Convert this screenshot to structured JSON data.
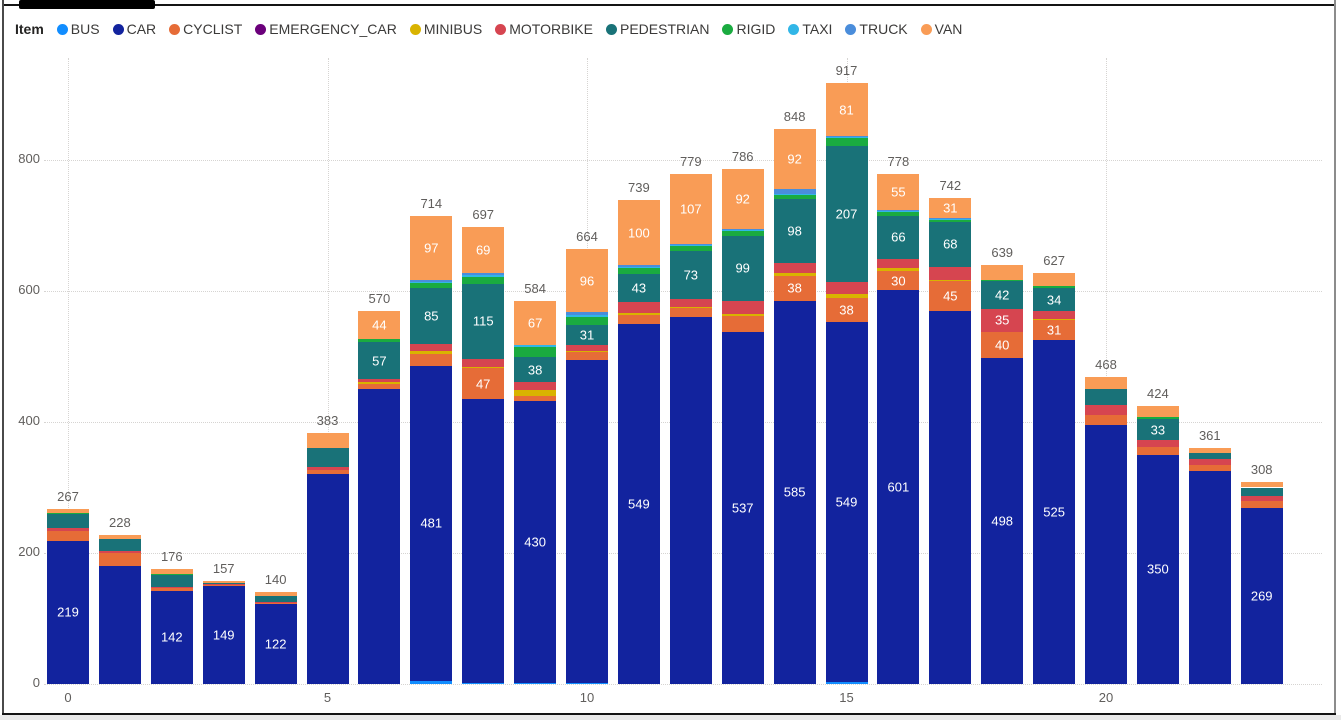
{
  "legend": {
    "title": "Item",
    "items": [
      {
        "label": "BUS",
        "color": "#118DFF"
      },
      {
        "label": "CAR",
        "color": "#12239E"
      },
      {
        "label": "CYCLIST",
        "color": "#E66C37"
      },
      {
        "label": "EMERGENCY_CAR",
        "color": "#6B007B"
      },
      {
        "label": "MINIBUS",
        "color": "#D9B300"
      },
      {
        "label": "MOTORBIKE",
        "color": "#D64550"
      },
      {
        "label": "PEDESTRIAN",
        "color": "#197278"
      },
      {
        "label": "RIGID",
        "color": "#1AAB40"
      },
      {
        "label": "TAXI",
        "color": "#31B6E7"
      },
      {
        "label": "TRUCK",
        "color": "#4A8DDB"
      },
      {
        "label": "VAN",
        "color": "#F99C56"
      }
    ]
  },
  "chart_data": {
    "type": "bar",
    "stacked": true,
    "title": "",
    "xlabel": "",
    "ylabel": "",
    "legend_position": "top-left",
    "grid": "dotted",
    "ylim": [
      0,
      950
    ],
    "y_ticks": [
      {
        "label": "0",
        "value": 0
      },
      {
        "label": "200",
        "value": 200
      },
      {
        "label": "400",
        "value": 400
      },
      {
        "label": "600",
        "value": 600
      },
      {
        "label": "800",
        "value": 800
      }
    ],
    "series_order": [
      "BUS",
      "CAR",
      "CYCLIST",
      "EMERGENCY_CAR",
      "MINIBUS",
      "MOTORBIKE",
      "PEDESTRIAN",
      "RIGID",
      "TAXI",
      "TRUCK",
      "VAN"
    ],
    "bars": [
      {
        "x": 0,
        "x_label": "0",
        "total": 267,
        "segments": [
          {
            "item": "CAR",
            "value": 219,
            "show_label": true
          },
          {
            "item": "CYCLIST",
            "value": 15
          },
          {
            "item": "MOTORBIKE",
            "value": 4
          },
          {
            "item": "PEDESTRIAN",
            "value": 22
          },
          {
            "item": "RIGID",
            "value": 1
          },
          {
            "item": "VAN",
            "value": 6
          }
        ]
      },
      {
        "x": 1,
        "total": 228,
        "segments": [
          {
            "item": "CAR",
            "value": 180
          },
          {
            "item": "CYCLIST",
            "value": 20
          },
          {
            "item": "MOTORBIKE",
            "value": 3
          },
          {
            "item": "PEDESTRIAN",
            "value": 19
          },
          {
            "item": "VAN",
            "value": 6
          }
        ]
      },
      {
        "x": 2,
        "total": 176,
        "segments": [
          {
            "item": "CAR",
            "value": 142,
            "show_label": true
          },
          {
            "item": "CYCLIST",
            "value": 4
          },
          {
            "item": "MOTORBIKE",
            "value": 2
          },
          {
            "item": "PEDESTRIAN",
            "value": 18
          },
          {
            "item": "RIGID",
            "value": 2
          },
          {
            "item": "VAN",
            "value": 8
          }
        ]
      },
      {
        "x": 3,
        "total": 157,
        "segments": [
          {
            "item": "CAR",
            "value": 149,
            "show_label": true
          },
          {
            "item": "CYCLIST",
            "value": 2
          },
          {
            "item": "MOTORBIKE",
            "value": 1
          },
          {
            "item": "PEDESTRIAN",
            "value": 2
          },
          {
            "item": "VAN",
            "value": 3
          }
        ]
      },
      {
        "x": 4,
        "total": 140,
        "segments": [
          {
            "item": "CAR",
            "value": 122,
            "show_label": true
          },
          {
            "item": "CYCLIST",
            "value": 1
          },
          {
            "item": "MOTORBIKE",
            "value": 2
          },
          {
            "item": "PEDESTRIAN",
            "value": 9
          },
          {
            "item": "VAN",
            "value": 6
          }
        ]
      },
      {
        "x": 5,
        "x_label": "5",
        "total": 383,
        "segments": [
          {
            "item": "CAR",
            "value": 320
          },
          {
            "item": "CYCLIST",
            "value": 6
          },
          {
            "item": "MOTORBIKE",
            "value": 5
          },
          {
            "item": "PEDESTRIAN",
            "value": 29
          },
          {
            "item": "VAN",
            "value": 23
          }
        ]
      },
      {
        "x": 6,
        "total": 570,
        "segments": [
          {
            "item": "CAR",
            "value": 450
          },
          {
            "item": "CYCLIST",
            "value": 8
          },
          {
            "item": "MINIBUS",
            "value": 3
          },
          {
            "item": "MOTORBIKE",
            "value": 4
          },
          {
            "item": "PEDESTRIAN",
            "value": 57,
            "show_label": true
          },
          {
            "item": "RIGID",
            "value": 4
          },
          {
            "item": "VAN",
            "value": 44,
            "show_label": true
          }
        ]
      },
      {
        "x": 7,
        "total": 714,
        "segments": [
          {
            "item": "BUS",
            "value": 5
          },
          {
            "item": "CAR",
            "value": 481,
            "show_label": true
          },
          {
            "item": "CYCLIST",
            "value": 18
          },
          {
            "item": "MINIBUS",
            "value": 5
          },
          {
            "item": "MOTORBIKE",
            "value": 10
          },
          {
            "item": "PEDESTRIAN",
            "value": 85,
            "show_label": true
          },
          {
            "item": "RIGID",
            "value": 8
          },
          {
            "item": "TAXI",
            "value": 2
          },
          {
            "item": "TRUCK",
            "value": 3
          },
          {
            "item": "VAN",
            "value": 97,
            "show_label": true
          }
        ]
      },
      {
        "x": 8,
        "total": 697,
        "segments": [
          {
            "item": "BUS",
            "value": 2
          },
          {
            "item": "CAR",
            "value": 433
          },
          {
            "item": "CYCLIST",
            "value": 47,
            "show_label": true
          },
          {
            "item": "MINIBUS",
            "value": 2
          },
          {
            "item": "MOTORBIKE",
            "value": 12
          },
          {
            "item": "PEDESTRIAN",
            "value": 115,
            "show_label": true
          },
          {
            "item": "RIGID",
            "value": 10
          },
          {
            "item": "TAXI",
            "value": 3
          },
          {
            "item": "TRUCK",
            "value": 4
          },
          {
            "item": "VAN",
            "value": 69,
            "show_label": true
          }
        ]
      },
      {
        "x": 9,
        "total": 584,
        "segments": [
          {
            "item": "BUS",
            "value": 2
          },
          {
            "item": "CAR",
            "value": 430,
            "show_label": true
          },
          {
            "item": "CYCLIST",
            "value": 8
          },
          {
            "item": "MINIBUS",
            "value": 9
          },
          {
            "item": "MOTORBIKE",
            "value": 12
          },
          {
            "item": "PEDESTRIAN",
            "value": 38,
            "show_label": true
          },
          {
            "item": "RIGID",
            "value": 15
          },
          {
            "item": "TAXI",
            "value": 3
          },
          {
            "item": "VAN",
            "value": 67,
            "show_label": true
          }
        ]
      },
      {
        "x": 10,
        "x_label": "10",
        "total": 664,
        "segments": [
          {
            "item": "BUS",
            "value": 2
          },
          {
            "item": "CAR",
            "value": 493
          },
          {
            "item": "CYCLIST",
            "value": 12
          },
          {
            "item": "MINIBUS",
            "value": 2
          },
          {
            "item": "MOTORBIKE",
            "value": 8
          },
          {
            "item": "PEDESTRIAN",
            "value": 31,
            "show_label": true
          },
          {
            "item": "RIGID",
            "value": 12
          },
          {
            "item": "TAXI",
            "value": 3
          },
          {
            "item": "TRUCK",
            "value": 5
          },
          {
            "item": "VAN",
            "value": 96,
            "show_label": true
          }
        ]
      },
      {
        "x": 11,
        "total": 739,
        "segments": [
          {
            "item": "CAR",
            "value": 549,
            "show_label": true
          },
          {
            "item": "CYCLIST",
            "value": 15
          },
          {
            "item": "MINIBUS",
            "value": 2
          },
          {
            "item": "MOTORBIKE",
            "value": 17
          },
          {
            "item": "PEDESTRIAN",
            "value": 43,
            "show_label": true
          },
          {
            "item": "RIGID",
            "value": 10
          },
          {
            "item": "TAXI",
            "value": 1
          },
          {
            "item": "TRUCK",
            "value": 2
          },
          {
            "item": "VAN",
            "value": 100,
            "show_label": true
          }
        ]
      },
      {
        "x": 12,
        "total": 779,
        "segments": [
          {
            "item": "CAR",
            "value": 560
          },
          {
            "item": "CYCLIST",
            "value": 14
          },
          {
            "item": "MINIBUS",
            "value": 2
          },
          {
            "item": "MOTORBIKE",
            "value": 12
          },
          {
            "item": "PEDESTRIAN",
            "value": 73,
            "show_label": true
          },
          {
            "item": "RIGID",
            "value": 8
          },
          {
            "item": "TAXI",
            "value": 1
          },
          {
            "item": "TRUCK",
            "value": 2
          },
          {
            "item": "VAN",
            "value": 107,
            "show_label": true
          }
        ]
      },
      {
        "x": 13,
        "total": 786,
        "segments": [
          {
            "item": "CAR",
            "value": 537,
            "show_label": true
          },
          {
            "item": "CYCLIST",
            "value": 25
          },
          {
            "item": "MINIBUS",
            "value": 3
          },
          {
            "item": "MOTORBIKE",
            "value": 20
          },
          {
            "item": "PEDESTRIAN",
            "value": 99,
            "show_label": true
          },
          {
            "item": "RIGID",
            "value": 8
          },
          {
            "item": "TAXI",
            "value": 1
          },
          {
            "item": "TRUCK",
            "value": 1
          },
          {
            "item": "VAN",
            "value": 92,
            "show_label": true
          }
        ]
      },
      {
        "x": 14,
        "total": 848,
        "segments": [
          {
            "item": "CAR",
            "value": 585,
            "show_label": true
          },
          {
            "item": "CYCLIST",
            "value": 38,
            "show_label": true
          },
          {
            "item": "MINIBUS",
            "value": 5
          },
          {
            "item": "MOTORBIKE",
            "value": 15
          },
          {
            "item": "PEDESTRIAN",
            "value": 98,
            "show_label": true
          },
          {
            "item": "RIGID",
            "value": 5
          },
          {
            "item": "TAXI",
            "value": 2
          },
          {
            "item": "TRUCK",
            "value": 8
          },
          {
            "item": "VAN",
            "value": 92,
            "show_label": true
          }
        ]
      },
      {
        "x": 15,
        "x_label": "15",
        "total": 917,
        "segments": [
          {
            "item": "BUS",
            "value": 3
          },
          {
            "item": "CAR",
            "value": 549,
            "show_label": true
          },
          {
            "item": "CYCLIST",
            "value": 38,
            "show_label": true
          },
          {
            "item": "MINIBUS",
            "value": 5
          },
          {
            "item": "MOTORBIKE",
            "value": 19
          },
          {
            "item": "PEDESTRIAN",
            "value": 207,
            "show_label": true
          },
          {
            "item": "RIGID",
            "value": 13
          },
          {
            "item": "TAXI",
            "value": 1
          },
          {
            "item": "TRUCK",
            "value": 1
          },
          {
            "item": "VAN",
            "value": 81,
            "show_label": true
          }
        ]
      },
      {
        "x": 16,
        "total": 778,
        "segments": [
          {
            "item": "CAR",
            "value": 601,
            "show_label": true
          },
          {
            "item": "CYCLIST",
            "value": 30,
            "show_label": true
          },
          {
            "item": "MINIBUS",
            "value": 4
          },
          {
            "item": "MOTORBIKE",
            "value": 14
          },
          {
            "item": "PEDESTRIAN",
            "value": 66,
            "show_label": true
          },
          {
            "item": "RIGID",
            "value": 6
          },
          {
            "item": "TAXI",
            "value": 1
          },
          {
            "item": "TRUCK",
            "value": 1
          },
          {
            "item": "VAN",
            "value": 55,
            "show_label": true
          }
        ]
      },
      {
        "x": 17,
        "total": 742,
        "segments": [
          {
            "item": "CAR",
            "value": 570
          },
          {
            "item": "CYCLIST",
            "value": 45,
            "show_label": true
          },
          {
            "item": "MINIBUS",
            "value": 2
          },
          {
            "item": "MOTORBIKE",
            "value": 20
          },
          {
            "item": "PEDESTRIAN",
            "value": 68,
            "show_label": true
          },
          {
            "item": "RIGID",
            "value": 4
          },
          {
            "item": "TAXI",
            "value": 1
          },
          {
            "item": "TRUCK",
            "value": 1
          },
          {
            "item": "VAN",
            "value": 31,
            "show_label": true
          }
        ]
      },
      {
        "x": 18,
        "total": 639,
        "segments": [
          {
            "item": "CAR",
            "value": 498,
            "show_label": true
          },
          {
            "item": "CYCLIST",
            "value": 40,
            "show_label": true
          },
          {
            "item": "MOTORBIKE",
            "value": 35,
            "show_label": true
          },
          {
            "item": "PEDESTRIAN",
            "value": 42,
            "show_label": true
          },
          {
            "item": "RIGID",
            "value": 2
          },
          {
            "item": "VAN",
            "value": 22
          }
        ]
      },
      {
        "x": 19,
        "total": 627,
        "segments": [
          {
            "item": "CAR",
            "value": 525,
            "show_label": true
          },
          {
            "item": "CYCLIST",
            "value": 31,
            "show_label": true
          },
          {
            "item": "MINIBUS",
            "value": 2
          },
          {
            "item": "MOTORBIKE",
            "value": 12
          },
          {
            "item": "PEDESTRIAN",
            "value": 34,
            "show_label": true
          },
          {
            "item": "RIGID",
            "value": 3
          },
          {
            "item": "VAN",
            "value": 20
          }
        ]
      },
      {
        "x": 20,
        "x_label": "20",
        "total": 468,
        "segments": [
          {
            "item": "CAR",
            "value": 395
          },
          {
            "item": "CYCLIST",
            "value": 16
          },
          {
            "item": "MOTORBIKE",
            "value": 15
          },
          {
            "item": "PEDESTRIAN",
            "value": 25
          },
          {
            "item": "VAN",
            "value": 17
          }
        ]
      },
      {
        "x": 21,
        "total": 424,
        "segments": [
          {
            "item": "CAR",
            "value": 350,
            "show_label": true
          },
          {
            "item": "CYCLIST",
            "value": 12
          },
          {
            "item": "MOTORBIKE",
            "value": 10
          },
          {
            "item": "PEDESTRIAN",
            "value": 33,
            "show_label": true
          },
          {
            "item": "RIGID",
            "value": 2
          },
          {
            "item": "VAN",
            "value": 17
          }
        ]
      },
      {
        "x": 22,
        "total": 361,
        "segments": [
          {
            "item": "CAR",
            "value": 325
          },
          {
            "item": "CYCLIST",
            "value": 9
          },
          {
            "item": "MOTORBIKE",
            "value": 9
          },
          {
            "item": "PEDESTRIAN",
            "value": 9
          },
          {
            "item": "VAN",
            "value": 9
          }
        ]
      },
      {
        "x": 23,
        "total": 308,
        "segments": [
          {
            "item": "CAR",
            "value": 269,
            "show_label": true
          },
          {
            "item": "CYCLIST",
            "value": 10
          },
          {
            "item": "MOTORBIKE",
            "value": 8
          },
          {
            "item": "PEDESTRIAN",
            "value": 13
          },
          {
            "item": "VAN",
            "value": 8
          }
        ]
      }
    ]
  }
}
